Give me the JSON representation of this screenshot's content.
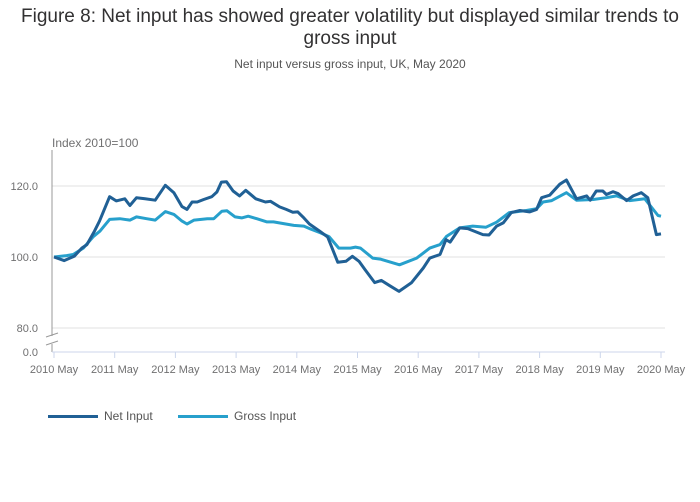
{
  "chart_data": {
    "type": "line",
    "title": "Figure 8: Net input has showed greater volatility but displayed similar trends to gross input",
    "subtitle": "Net input versus gross input, UK, May 2020",
    "ylabel": "Index 2010=100",
    "xlabel": "",
    "x_unit": "months since May 2010",
    "xlim": [
      0,
      120
    ],
    "ylim": [
      80,
      125
    ],
    "y_axis_broken": true,
    "y_ticks": [
      {
        "v": 0,
        "label": "0.0"
      },
      {
        "v": 80,
        "label": "80.0"
      },
      {
        "v": 100,
        "label": "100.0"
      },
      {
        "v": 120,
        "label": "120.0"
      }
    ],
    "x_ticks": [
      {
        "m": 0,
        "label": "2010 May"
      },
      {
        "m": 12,
        "label": "2011 May"
      },
      {
        "m": 24,
        "label": "2012 May"
      },
      {
        "m": 36,
        "label": "2013 May"
      },
      {
        "m": 48,
        "label": "2014 May"
      },
      {
        "m": 60,
        "label": "2015 May"
      },
      {
        "m": 72,
        "label": "2016 May"
      },
      {
        "m": 84,
        "label": "2017 May"
      },
      {
        "m": 96,
        "label": "2018 May"
      },
      {
        "m": 108,
        "label": "2019 May"
      },
      {
        "m": 120,
        "label": "2020 May"
      }
    ],
    "grid": true,
    "legend_position": "bottom-left",
    "series": [
      {
        "name": "Net Input",
        "color": "#206095",
        "points": [
          [
            0,
            100
          ],
          [
            2,
            99
          ],
          [
            4,
            100.2
          ],
          [
            5.5,
            102.5
          ],
          [
            6.5,
            103.5
          ],
          [
            8,
            107.3
          ],
          [
            9,
            110.1
          ],
          [
            11,
            117
          ],
          [
            12.3,
            115.8
          ],
          [
            14,
            116.4
          ],
          [
            15,
            114.5
          ],
          [
            16.3,
            116.7
          ],
          [
            18,
            116.4
          ],
          [
            20,
            116
          ],
          [
            22,
            120.2
          ],
          [
            23.7,
            118.1
          ],
          [
            25.3,
            114.2
          ],
          [
            26.3,
            113.4
          ],
          [
            27.3,
            115.5
          ],
          [
            28.3,
            115.5
          ],
          [
            29.6,
            116.2
          ],
          [
            31.2,
            117
          ],
          [
            32.2,
            118.3
          ],
          [
            33.1,
            121.1
          ],
          [
            34.1,
            121.2
          ],
          [
            35.4,
            118.6
          ],
          [
            36.7,
            117.2
          ],
          [
            37.9,
            118.8
          ],
          [
            39.9,
            116.4
          ],
          [
            41.8,
            115.5
          ],
          [
            42.8,
            115.7
          ],
          [
            44.6,
            114.1
          ],
          [
            45.9,
            113.4
          ],
          [
            47.2,
            112.6
          ],
          [
            48.2,
            112.7
          ],
          [
            49.2,
            111.3
          ],
          [
            50.5,
            109.3
          ],
          [
            52.5,
            107.3
          ],
          [
            54.1,
            105.6
          ],
          [
            56.1,
            98.5
          ],
          [
            57.7,
            98.8
          ],
          [
            59,
            100.2
          ],
          [
            60.3,
            98.8
          ],
          [
            61.5,
            96.4
          ],
          [
            63.4,
            92.8
          ],
          [
            64.7,
            93.4
          ],
          [
            66.4,
            91.9
          ],
          [
            68.2,
            90.3
          ],
          [
            70.7,
            92.8
          ],
          [
            73,
            96.9
          ],
          [
            74.3,
            99.7
          ],
          [
            76.3,
            100.7
          ],
          [
            77.5,
            104.9
          ],
          [
            78.3,
            104.2
          ],
          [
            80.2,
            108.2
          ],
          [
            81.8,
            108
          ],
          [
            84.8,
            106.3
          ],
          [
            86,
            106.2
          ],
          [
            87.5,
            108.7
          ],
          [
            88.8,
            109.6
          ],
          [
            90.4,
            112.5
          ],
          [
            92.1,
            113.1
          ],
          [
            94,
            112.7
          ],
          [
            95.4,
            113.4
          ],
          [
            96.4,
            116.7
          ],
          [
            98,
            117.4
          ],
          [
            100,
            120.5
          ],
          [
            101.3,
            121.7
          ],
          [
            103.3,
            116.4
          ],
          [
            105.3,
            117.2
          ],
          [
            106,
            116
          ],
          [
            107.2,
            118.6
          ],
          [
            108.5,
            118.6
          ],
          [
            109.2,
            117.6
          ],
          [
            110.5,
            118.4
          ],
          [
            111.5,
            117.9
          ],
          [
            113.2,
            115.9
          ],
          [
            114.5,
            117.2
          ],
          [
            116.1,
            118.1
          ],
          [
            117.4,
            116.7
          ],
          [
            119.1,
            106.3
          ],
          [
            120,
            106.5
          ]
        ]
      },
      {
        "name": "Gross Input",
        "color": "#27a0cc",
        "points": [
          [
            0,
            100
          ],
          [
            2.5,
            100.4
          ],
          [
            3.8,
            100.7
          ],
          [
            5.8,
            102.5
          ],
          [
            7.8,
            105.8
          ],
          [
            9.1,
            107.3
          ],
          [
            11,
            110.6
          ],
          [
            13,
            110.8
          ],
          [
            15,
            110.4
          ],
          [
            16.3,
            111.3
          ],
          [
            18.3,
            110.8
          ],
          [
            20,
            110.4
          ],
          [
            22,
            112.8
          ],
          [
            23.7,
            112
          ],
          [
            25.3,
            110.1
          ],
          [
            26.3,
            109.3
          ],
          [
            27.7,
            110.4
          ],
          [
            30.3,
            110.8
          ],
          [
            31.6,
            110.8
          ],
          [
            33.2,
            112.9
          ],
          [
            34.2,
            113
          ],
          [
            35.8,
            111.3
          ],
          [
            37.1,
            111
          ],
          [
            38.4,
            111.5
          ],
          [
            40.1,
            110.8
          ],
          [
            42.1,
            109.9
          ],
          [
            43.4,
            109.9
          ],
          [
            45.4,
            109.4
          ],
          [
            47.4,
            108.9
          ],
          [
            49.4,
            108.7
          ],
          [
            50.7,
            107.9
          ],
          [
            52.7,
            106.8
          ],
          [
            54.4,
            105.7
          ],
          [
            56.3,
            102.5
          ],
          [
            58.6,
            102.5
          ],
          [
            59.6,
            102.8
          ],
          [
            60.6,
            102.5
          ],
          [
            63,
            99.7
          ],
          [
            64.5,
            99.4
          ],
          [
            68.3,
            97.8
          ],
          [
            71.7,
            99.7
          ],
          [
            74.3,
            102.5
          ],
          [
            76.3,
            103.5
          ],
          [
            77.6,
            105.8
          ],
          [
            80.2,
            108.2
          ],
          [
            82.8,
            108.7
          ],
          [
            85.4,
            108.4
          ],
          [
            87.5,
            109.8
          ],
          [
            90,
            112.5
          ],
          [
            93.4,
            113.1
          ],
          [
            95.4,
            113.6
          ],
          [
            96.7,
            115.5
          ],
          [
            98.4,
            115.9
          ],
          [
            101.3,
            118.1
          ],
          [
            103.3,
            116
          ],
          [
            106.6,
            116.2
          ],
          [
            109.2,
            116.7
          ],
          [
            111.2,
            117.2
          ],
          [
            113.8,
            115.9
          ],
          [
            116.8,
            116.4
          ],
          [
            119.4,
            111.7
          ],
          [
            120,
            111.5
          ]
        ]
      }
    ]
  }
}
